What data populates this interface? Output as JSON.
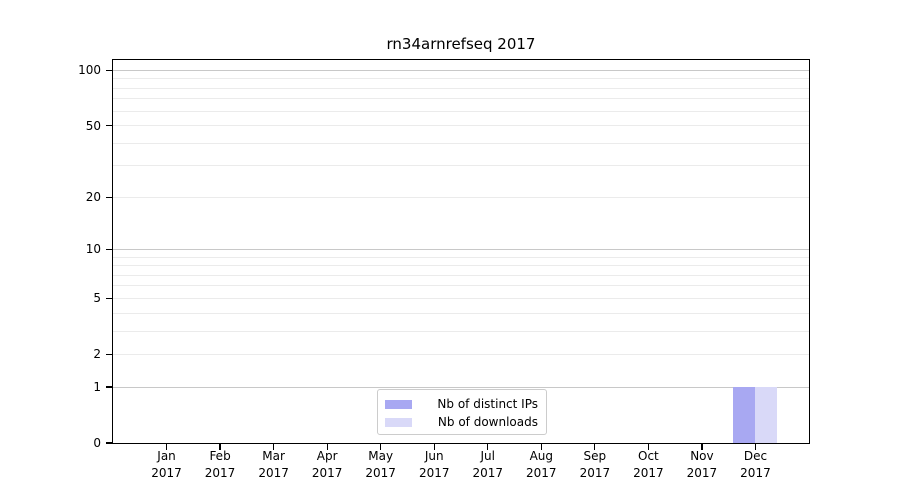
{
  "chart_data": {
    "type": "bar",
    "title": "rn34arnrefseq 2017",
    "categories": [
      "Jan 2017",
      "Feb 2017",
      "Mar 2017",
      "Apr 2017",
      "May 2017",
      "Jun 2017",
      "Jul 2017",
      "Aug 2017",
      "Sep 2017",
      "Oct 2017",
      "Nov 2017",
      "Dec 2017"
    ],
    "x_ticks": [
      {
        "month": "Jan",
        "year": "2017"
      },
      {
        "month": "Feb",
        "year": "2017"
      },
      {
        "month": "Mar",
        "year": "2017"
      },
      {
        "month": "Apr",
        "year": "2017"
      },
      {
        "month": "May",
        "year": "2017"
      },
      {
        "month": "Jun",
        "year": "2017"
      },
      {
        "month": "Jul",
        "year": "2017"
      },
      {
        "month": "Aug",
        "year": "2017"
      },
      {
        "month": "Sep",
        "year": "2017"
      },
      {
        "month": "Oct",
        "year": "2017"
      },
      {
        "month": "Nov",
        "year": "2017"
      },
      {
        "month": "Dec",
        "year": "2017"
      }
    ],
    "series": [
      {
        "name": "Nb of distinct IPs",
        "color": "#a8a8f2",
        "values": [
          0,
          0,
          0,
          0,
          0,
          0,
          0,
          0,
          0,
          0,
          0,
          1
        ]
      },
      {
        "name": "Nb of downloads",
        "color": "#d9d9f8",
        "values": [
          0,
          0,
          0,
          0,
          0,
          0,
          0,
          0,
          0,
          0,
          0,
          1
        ]
      }
    ],
    "yscale": "log1p",
    "ylim": [
      0,
      114
    ],
    "y_tick_values": [
      0,
      1,
      2,
      5,
      10,
      20,
      50,
      100
    ],
    "y_tick_labels": [
      "0",
      "1",
      "2",
      "5",
      "10",
      "20",
      "50",
      "100"
    ],
    "y_power_gridlines": [
      1,
      10,
      100
    ],
    "y_minor_gridlines": [
      2,
      3,
      4,
      5,
      6,
      7,
      8,
      9,
      20,
      30,
      40,
      50,
      60,
      70,
      80,
      90
    ],
    "grid": "horizontal-only",
    "legend_position": "bottom-center",
    "xlabel": "",
    "ylabel": ""
  },
  "colors": {
    "background": "#ffffff",
    "axis": "#000000",
    "grid_power": "#c8c8c8",
    "grid_minor": "#ebebeb",
    "legend_border": "#cccccc",
    "text": "#000000"
  }
}
